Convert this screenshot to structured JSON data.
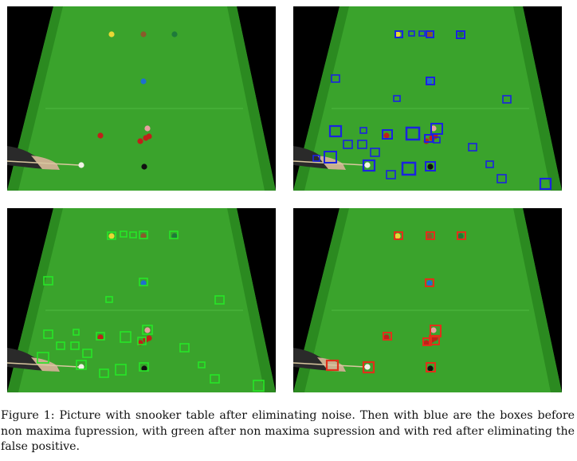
{
  "figure": {
    "caption": "Figure 1: Picture with snooker table after eliminating noise. Then with blue are the boxes before non maxima fupression, with green after non maxima supression and with red after eliminating the false positive.",
    "panels": [
      {
        "name": "table-original",
        "box_color": null
      },
      {
        "name": "table-blue-boxes",
        "box_color": "#1a23e0"
      },
      {
        "name": "table-green-boxes",
        "box_color": "#27e627"
      },
      {
        "name": "table-red-boxes",
        "box_color": "#e0301a"
      }
    ]
  },
  "colors": {
    "felt": "#3aa32c",
    "felt_dark": "#2b8a20",
    "blue_box": "#1a23e0",
    "green_box": "#27e627",
    "red_box": "#e0301a"
  }
}
